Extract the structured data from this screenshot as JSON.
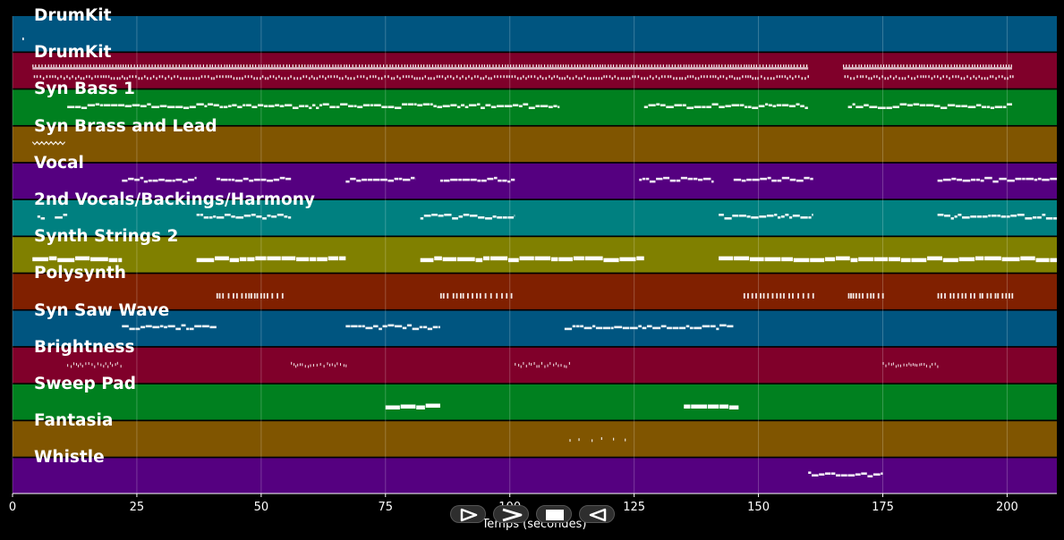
{
  "axis": {
    "xlabel": "Temps (secondes)",
    "xlim": [
      0,
      210
    ],
    "ticks": [
      0,
      25,
      50,
      75,
      100,
      125,
      150,
      175,
      200
    ],
    "tick_labels": [
      "0",
      "25",
      "50",
      "75",
      "100",
      "125",
      "150",
      "175",
      "200"
    ]
  },
  "colors": {
    "background": "#000000",
    "note": "#ffffff",
    "grid": "#ffffff",
    "control": "#2e2e2e"
  },
  "controls": [
    {
      "name": "play-button",
      "icon": "play-icon"
    },
    {
      "name": "fast-forward-button",
      "icon": "forward-icon"
    },
    {
      "name": "stop-button",
      "icon": "stop-icon"
    },
    {
      "name": "rewind-button",
      "icon": "rewind-icon"
    }
  ],
  "tracks": [
    {
      "name": "DrumKit",
      "color": "#005580",
      "style": "dots",
      "segments": [
        [
          2,
          2.5
        ]
      ]
    },
    {
      "name": "DrumKit",
      "color": "#80002a",
      "style": "drums",
      "segments": [
        [
          4,
          160
        ],
        [
          167,
          201
        ]
      ]
    },
    {
      "name": "Syn Bass 1",
      "color": "#00801f",
      "style": "line",
      "segments": [
        [
          11,
          110
        ],
        [
          127,
          160
        ],
        [
          168,
          201
        ]
      ]
    },
    {
      "name": "Syn Brass and Lead",
      "color": "#805500",
      "style": "zigzag",
      "segments": [
        [
          4,
          11
        ]
      ]
    },
    {
      "name": "Vocal",
      "color": "#550080",
      "style": "line",
      "segments": [
        [
          22,
          37
        ],
        [
          41,
          56
        ],
        [
          67,
          81
        ],
        [
          86,
          101
        ],
        [
          126,
          141
        ],
        [
          145,
          161
        ],
        [
          186,
          210
        ]
      ]
    },
    {
      "name": "2nd Vocals/Backings/Harmony",
      "color": "#008080",
      "style": "line",
      "segments": [
        [
          5,
          6.5
        ],
        [
          8.5,
          11
        ],
        [
          37,
          56
        ],
        [
          82,
          101
        ],
        [
          142,
          161
        ],
        [
          186,
          210
        ]
      ]
    },
    {
      "name": "Synth Strings 2",
      "color": "#808000",
      "style": "thick",
      "segments": [
        [
          4,
          22
        ],
        [
          37,
          67
        ],
        [
          82,
          127
        ],
        [
          142,
          210
        ]
      ]
    },
    {
      "name": "Polysynth",
      "color": "#802000",
      "style": "bars",
      "segments": [
        [
          41,
          55
        ],
        [
          86,
          101
        ],
        [
          147,
          161
        ],
        [
          168,
          175
        ],
        [
          186,
          201
        ]
      ]
    },
    {
      "name": "Syn Saw Wave",
      "color": "#005580",
      "style": "line",
      "segments": [
        [
          22,
          41
        ],
        [
          67,
          86
        ],
        [
          111,
          145
        ]
      ]
    },
    {
      "name": "Brightness",
      "color": "#80002a",
      "style": "fine",
      "segments": [
        [
          11,
          22
        ],
        [
          56,
          67
        ],
        [
          101,
          112
        ],
        [
          175,
          186
        ]
      ]
    },
    {
      "name": "Sweep Pad",
      "color": "#00801f",
      "style": "thick",
      "segments": [
        [
          75,
          86
        ],
        [
          135,
          146
        ]
      ]
    },
    {
      "name": "Fantasia",
      "color": "#805500",
      "style": "sparse",
      "segments": [
        [
          112,
          124
        ]
      ]
    },
    {
      "name": "Whistle",
      "color": "#550080",
      "style": "line",
      "segments": [
        [
          160,
          175
        ]
      ]
    }
  ]
}
